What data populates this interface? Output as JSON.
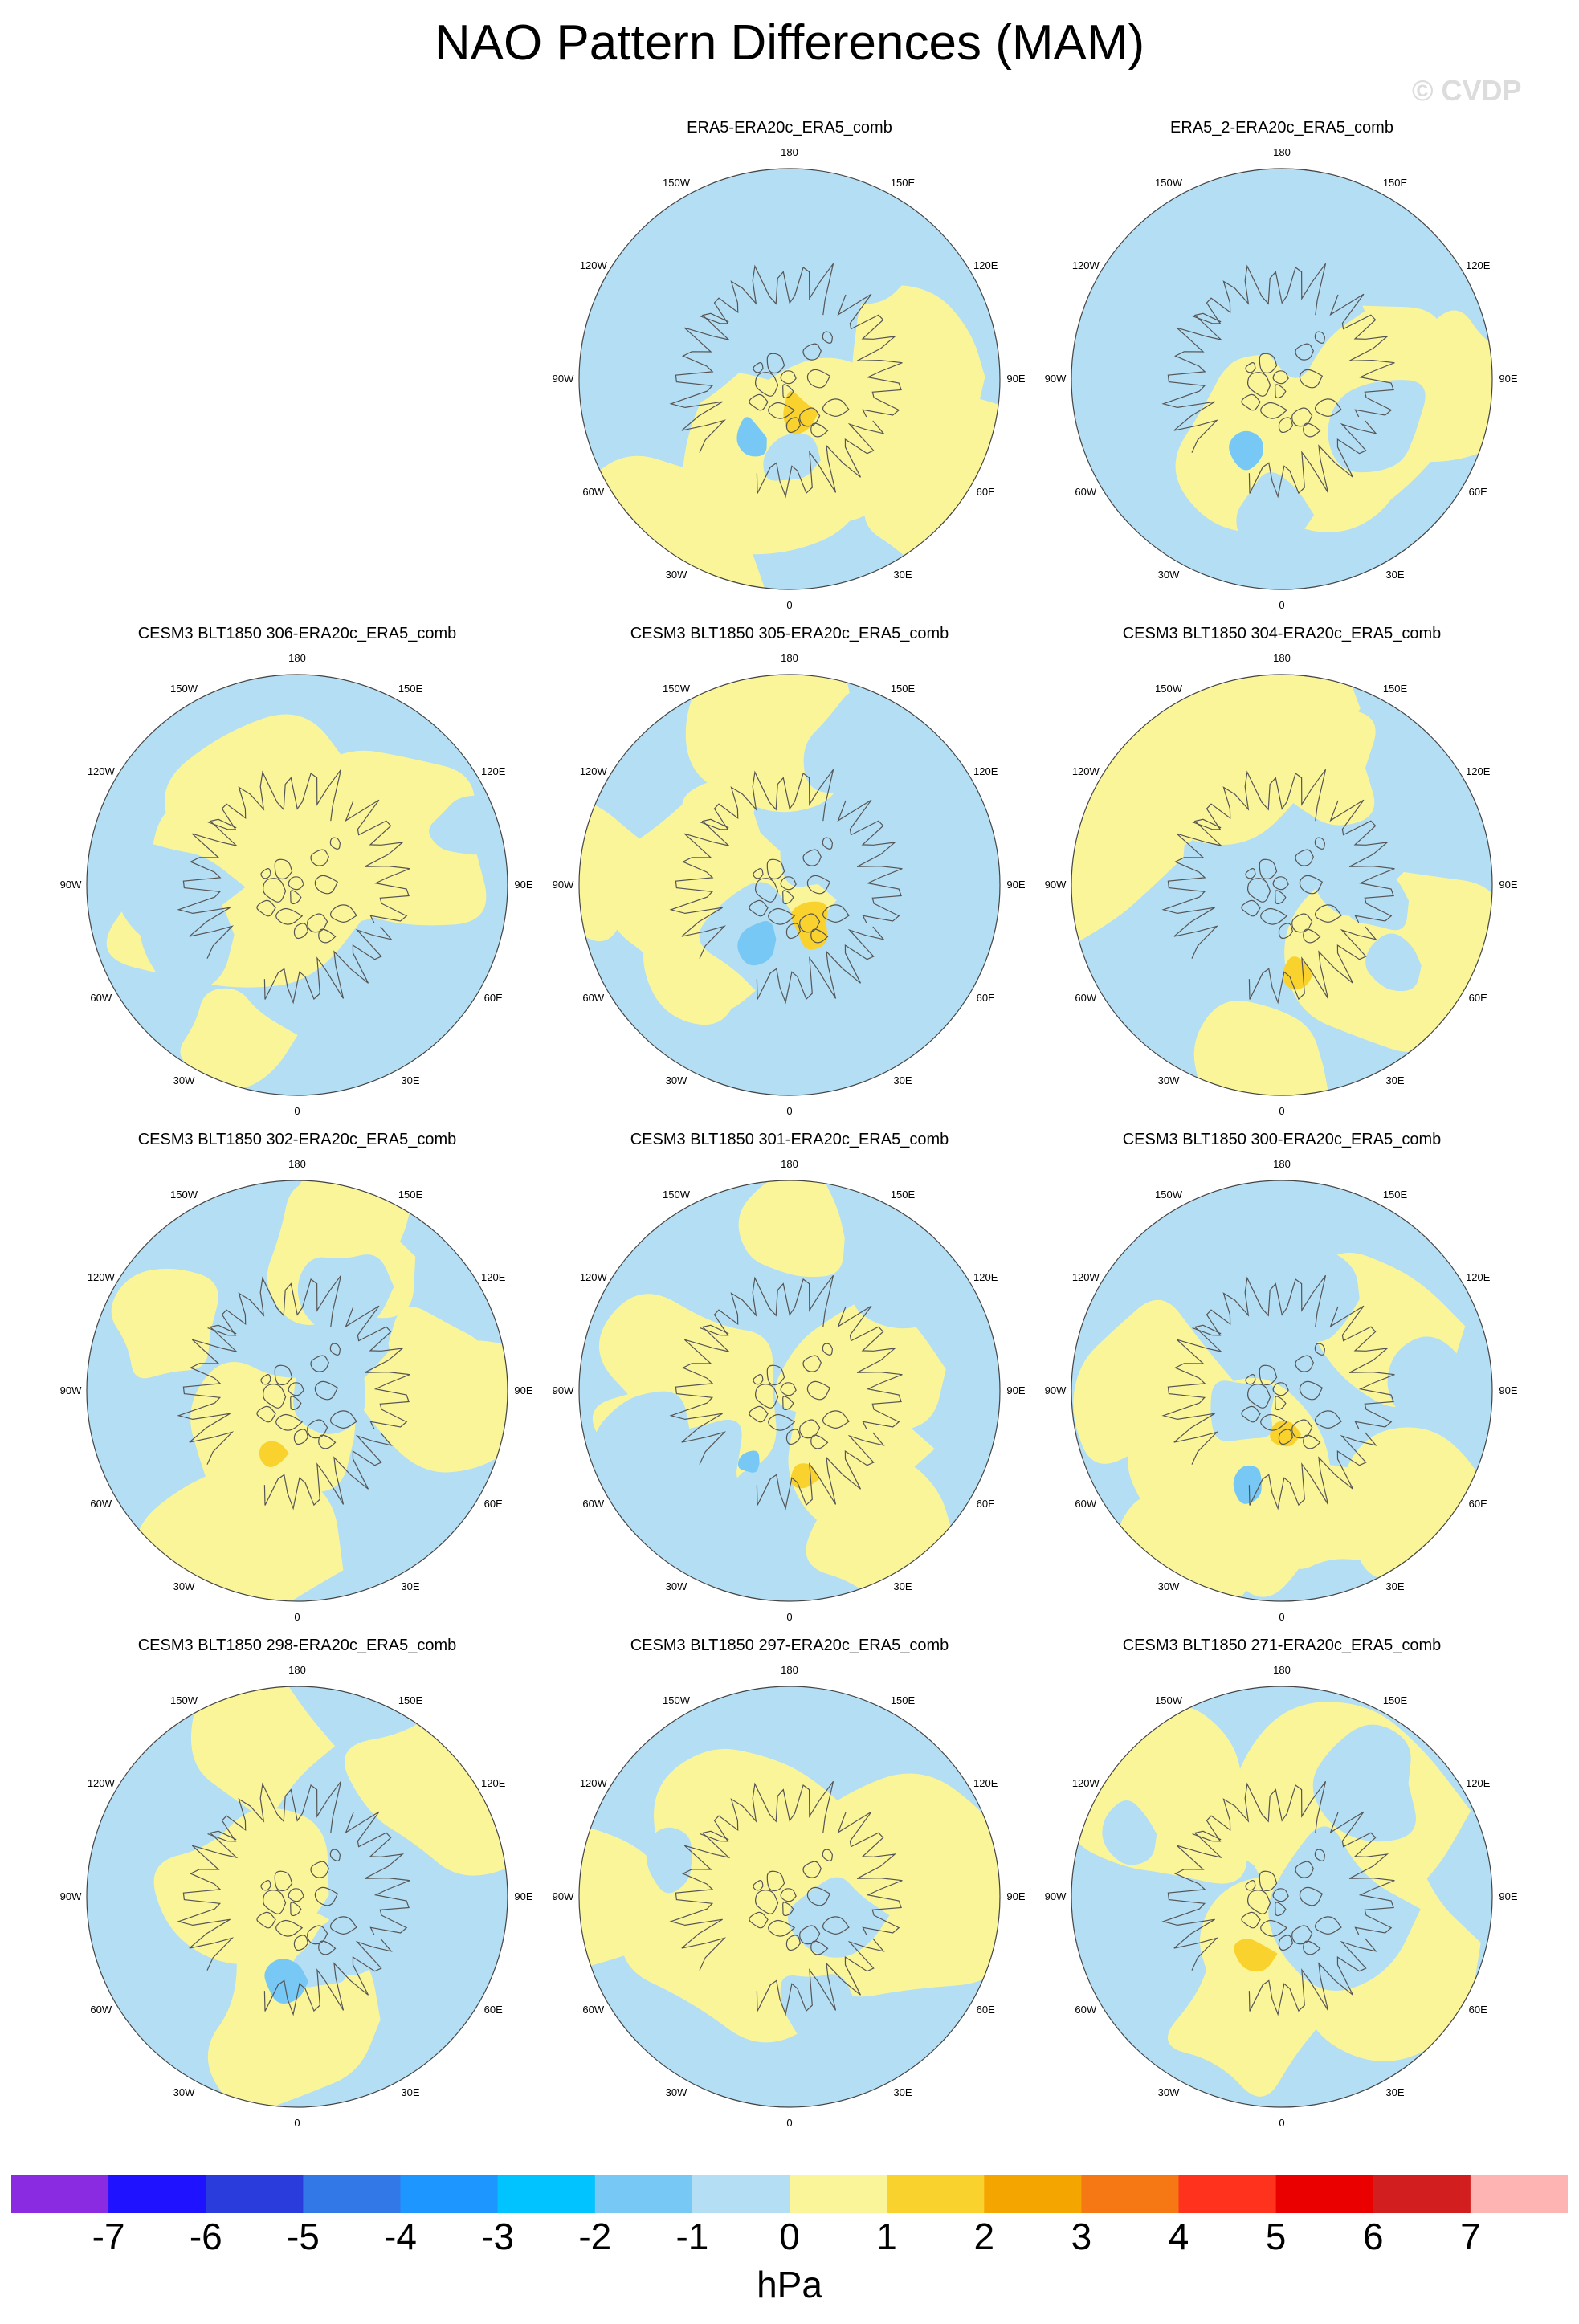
{
  "title": "NAO Pattern Differences (MAM)",
  "watermark": "© CVDP",
  "colors": {
    "background": "#ffffff",
    "coast": "#555555",
    "levels": [
      "#8a2be2",
      "#1e12ff",
      "#2a3cdc",
      "#3278e6",
      "#1e96ff",
      "#00c3ff",
      "#78c8f5",
      "#b4def4",
      "#fbf59a",
      "#fad22d",
      "#f5a500",
      "#f57814",
      "#ff321e",
      "#eb0000",
      "#d21e1e",
      "#ffb4b4"
    ]
  },
  "longitude_labels": [
    "180",
    "150E",
    "120E",
    "90E",
    "60E",
    "30E",
    "0",
    "30W",
    "60W",
    "90W",
    "120W",
    "150W"
  ],
  "panels": [
    {
      "title": "ERA5-ERA20c_ERA5_comb"
    },
    {
      "title": "ERA5_2-ERA20c_ERA5_comb"
    },
    {
      "title": "CESM3 BLT1850 306-ERA20c_ERA5_comb"
    },
    {
      "title": "CESM3 BLT1850 305-ERA20c_ERA5_comb"
    },
    {
      "title": "CESM3 BLT1850 304-ERA20c_ERA5_comb"
    },
    {
      "title": "CESM3 BLT1850 302-ERA20c_ERA5_comb"
    },
    {
      "title": "CESM3 BLT1850 301-ERA20c_ERA5_comb"
    },
    {
      "title": "CESM3 BLT1850 300-ERA20c_ERA5_comb"
    },
    {
      "title": "CESM3 BLT1850 298-ERA20c_ERA5_comb"
    },
    {
      "title": "CESM3 BLT1850 297-ERA20c_ERA5_comb"
    },
    {
      "title": "CESM3 BLT1850 271-ERA20c_ERA5_comb"
    }
  ],
  "colorbar": {
    "labels": [
      "-7",
      "-6",
      "-5",
      "-4",
      "-3",
      "-2",
      "-1",
      "0",
      "1",
      "2",
      "3",
      "4",
      "5",
      "6",
      "7"
    ],
    "units": "hPa"
  }
}
